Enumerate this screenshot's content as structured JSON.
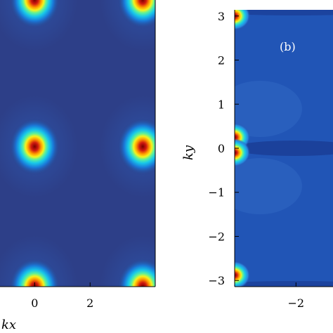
{
  "chart_data": [
    {
      "type": "heatmap",
      "panel_label": "",
      "xlabel": "kx",
      "ylabel": "",
      "x_ticks": [
        "0",
        "2"
      ],
      "x_tick_values": [
        0,
        2
      ],
      "xlim": [
        -1.25,
        4.35
      ],
      "ylim": [
        -3,
        3.14
      ],
      "colormap": "jet",
      "background_level": "low (dark blue)",
      "hotspots": [
        {
          "kx": 0,
          "ky": 3.14,
          "intensity": 1.0
        },
        {
          "kx": 3.9,
          "ky": 3.14,
          "intensity": 1.0
        },
        {
          "kx": 0,
          "ky": 0,
          "intensity": 1.0
        },
        {
          "kx": 3.9,
          "ky": 0,
          "intensity": 1.0
        },
        {
          "kx": 0,
          "ky": -3,
          "intensity": 1.0
        },
        {
          "kx": 3.9,
          "ky": -3,
          "intensity": 1.0
        }
      ]
    },
    {
      "type": "heatmap",
      "panel_label": "(b)",
      "xlabel": "",
      "ylabel": "ky",
      "x_ticks": [
        "−2"
      ],
      "x_tick_values": [
        -2
      ],
      "y_ticks": [
        "3",
        "2",
        "1",
        "0",
        "−1",
        "−2",
        "−3"
      ],
      "y_tick_values": [
        3,
        2,
        1,
        0,
        -1,
        -2,
        -3
      ],
      "xlim": [
        -3.14,
        -1.5
      ],
      "ylim": [
        -3.14,
        3.14
      ],
      "colormap": "jet",
      "background_level": "medium-low (blue)",
      "hotspots": [
        {
          "kx": -3.14,
          "ky": 3.0,
          "intensity": 1.0
        },
        {
          "kx": -3.14,
          "ky": 0.25,
          "intensity": 1.0
        },
        {
          "kx": -3.14,
          "ky": -0.1,
          "intensity": 1.0
        },
        {
          "kx": -3.14,
          "ky": -2.88,
          "intensity": 1.0
        }
      ]
    }
  ]
}
